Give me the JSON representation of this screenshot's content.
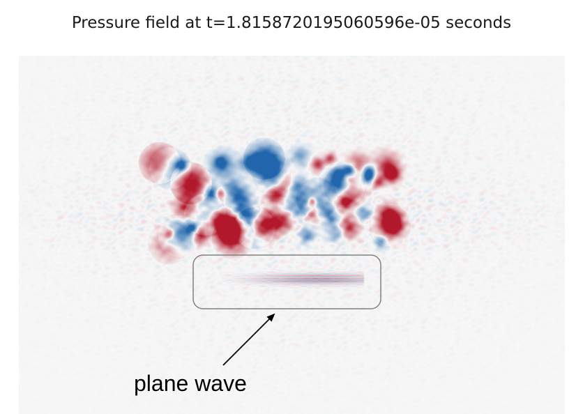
{
  "title": "Pressure field at t=1.8158720195060596e-05 seconds",
  "annotation": {
    "label": "plane wave",
    "icon": "arrow-icon"
  },
  "colors": {
    "background": "#f7f7f7",
    "positive": "#b2182b",
    "negative": "#2166ac",
    "box_stroke": "#808080",
    "arrow": "#000000"
  }
}
